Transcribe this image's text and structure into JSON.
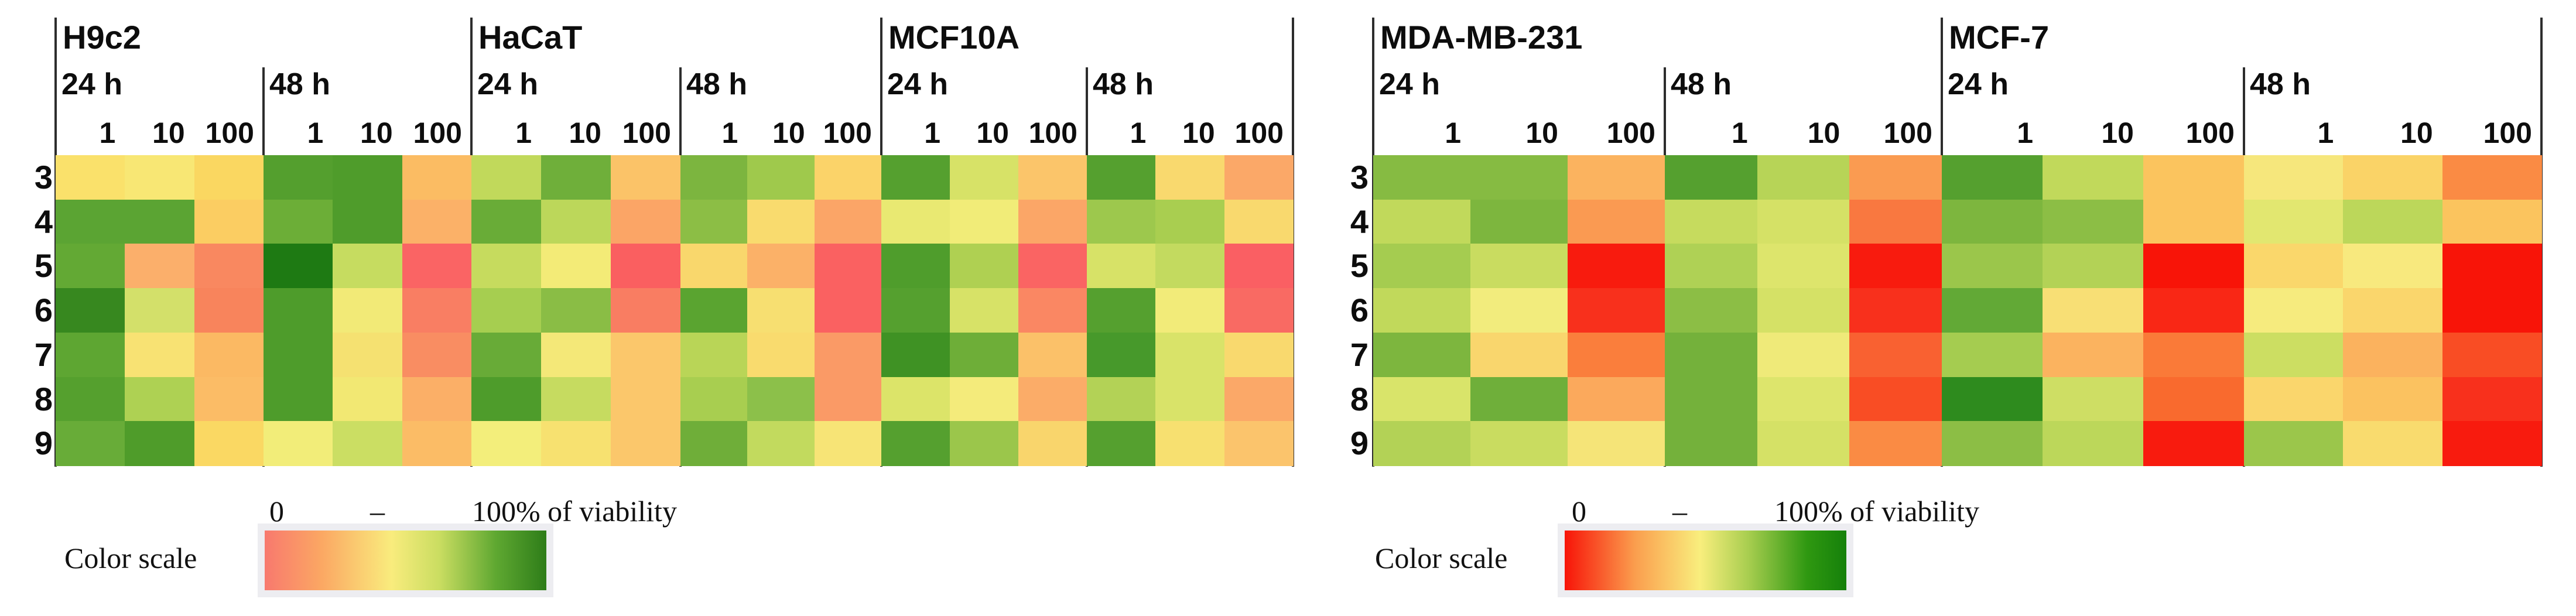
{
  "chart_data": {
    "type": "heatmap",
    "description": "Cell viability heatmaps for five cell lines at 24 h and 48 h, concentrations 1/10/100, compounds 3-9. Color encodes 0-100% viability (red=0, green=100).",
    "rows": [
      "3",
      "4",
      "5",
      "6",
      "7",
      "8",
      "9"
    ],
    "concentrations": [
      "1",
      "10",
      "100"
    ],
    "timepoint_labels": [
      "24 h",
      "48 h"
    ],
    "figures": [
      {
        "side": "left",
        "legend": {
          "label": "Color scale",
          "zero": "0",
          "dash": "–",
          "max": "100% of viability",
          "gradient": [
            "#f8796e",
            "#fba763 20%",
            "#f9ec7d 45%",
            "#cadd61 62%",
            "#5fa831 82%",
            "#2e7d19"
          ]
        },
        "cell_lines": [
          {
            "name": "H9c2",
            "timepoints": [
              {
                "label": "24 h",
                "cells": [
                  [
                    "#fae16b",
                    "#f8e774",
                    "#fad761"
                  ],
                  [
                    "#5ba433",
                    "#5ba433",
                    "#fbcd62"
                  ],
                  [
                    "#63a934",
                    "#fbaf6b",
                    "#f98860"
                  ],
                  [
                    "#37881f",
                    "#d3e06a",
                    "#f8845c"
                  ],
                  [
                    "#5ea632",
                    "#f8e273",
                    "#fbb963"
                  ],
                  [
                    "#55a02e",
                    "#aed153",
                    "#fbbc66"
                  ],
                  [
                    "#68ac38",
                    "#4f9c2a",
                    "#fad863"
                  ]
                ]
              },
              {
                "label": "48 h",
                "cells": [
                  [
                    "#549f2e",
                    "#4f9c2b",
                    "#fbbc63"
                  ],
                  [
                    "#6cae37",
                    "#4f9c2b",
                    "#fbb168"
                  ],
                  [
                    "#1e7a13",
                    "#c6dc60",
                    "#fa6464"
                  ],
                  [
                    "#4e9c2b",
                    "#f2ea77",
                    "#f97e63"
                  ],
                  [
                    "#4e9c2b",
                    "#f5e171",
                    "#f98d62"
                  ],
                  [
                    "#4e9c2b",
                    "#f2e873",
                    "#fbaf67"
                  ],
                  [
                    "#f2ed79",
                    "#cbde63",
                    "#fbbc66"
                  ]
                ]
              }
            ]
          },
          {
            "name": "HaCaT",
            "timepoints": [
              {
                "label": "24 h",
                "cells": [
                  [
                    "#c1d95b",
                    "#6faf3a",
                    "#fbc368"
                  ],
                  [
                    "#69ac37",
                    "#bcd75a",
                    "#fba566"
                  ],
                  [
                    "#c6db5e",
                    "#f3eb77",
                    "#fa5f60"
                  ],
                  [
                    "#a6ce50",
                    "#8abd45",
                    "#f97d62"
                  ],
                  [
                    "#68ab37",
                    "#f4e878",
                    "#fbc76b"
                  ],
                  [
                    "#4e9c2b",
                    "#c6db60",
                    "#fbc76b"
                  ],
                  [
                    "#f3ee7b",
                    "#f7e170",
                    "#fbc76b"
                  ]
                ]
              },
              {
                "label": "48 h",
                "cells": [
                  [
                    "#7cb53f",
                    "#9fc94c",
                    "#fbd369"
                  ],
                  [
                    "#8cbe45",
                    "#f9db6e",
                    "#fba567"
                  ],
                  [
                    "#f9d76c",
                    "#fbb168",
                    "#fa6161"
                  ],
                  [
                    "#5aa430",
                    "#f7df71",
                    "#fa6161"
                  ],
                  [
                    "#b9d557",
                    "#f9db6e",
                    "#fa9a66"
                  ],
                  [
                    "#a8ce50",
                    "#8cc04a",
                    "#fa9a66"
                  ],
                  [
                    "#6fae39",
                    "#c2da5e",
                    "#f7e476"
                  ]
                ]
              }
            ]
          },
          {
            "name": "MCF10A",
            "timepoints": [
              {
                "label": "24 h",
                "cells": [
                  [
                    "#55a02f",
                    "#d7e267",
                    "#fbc56a"
                  ],
                  [
                    "#e9e972",
                    "#f1ec78",
                    "#fba667"
                  ],
                  [
                    "#4f9d2c",
                    "#afd052",
                    "#fa6463"
                  ],
                  [
                    "#55a02f",
                    "#d7e267",
                    "#fa8763"
                  ],
                  [
                    "#3f9224",
                    "#6eae38",
                    "#fbc169"
                  ],
                  [
                    "#dce469",
                    "#f4eb7b",
                    "#fbac68"
                  ],
                  [
                    "#55a02f",
                    "#9bc64b",
                    "#f9d56c"
                  ]
                ]
              },
              {
                "label": "48 h",
                "cells": [
                  [
                    "#55a02f",
                    "#f9d96e",
                    "#fba868"
                  ],
                  [
                    "#9dc84d",
                    "#a9ce50",
                    "#f9d96e"
                  ],
                  [
                    "#d7e267",
                    "#c3da5f",
                    "#fa5f63"
                  ],
                  [
                    "#55a02f",
                    "#f2eb79",
                    "#f96a63"
                  ],
                  [
                    "#47992b",
                    "#d9e369",
                    "#f9d96e"
                  ],
                  [
                    "#b3d256",
                    "#d9e369",
                    "#fba868"
                  ],
                  [
                    "#55a02f",
                    "#f7e070",
                    "#fbc46c"
                  ]
                ]
              }
            ]
          }
        ]
      },
      {
        "side": "right",
        "legend": {
          "label": "Color scale",
          "zero": "0",
          "dash": "–",
          "max": "100% of viability",
          "gradient": [
            "#f81408",
            "#fa9e4e 25%",
            "#f9ee7d 48%",
            "#a9ce50 65%",
            "#2f9811 86%",
            "#15800a"
          ]
        },
        "cell_lines": [
          {
            "name": "MDA-MB-231",
            "timepoints": [
              {
                "label": "24 h",
                "cells": [
                  [
                    "#86bb42",
                    "#86bb42",
                    "#fbb35f"
                  ],
                  [
                    "#c1d95b",
                    "#7db63e",
                    "#fa9a52"
                  ],
                  [
                    "#a5cc50",
                    "#c9dc60",
                    "#f81b0e"
                  ],
                  [
                    "#c1d95b",
                    "#f2ec7d",
                    "#f8301c"
                  ],
                  [
                    "#7db63e",
                    "#f9d66d",
                    "#fa7e3c"
                  ],
                  [
                    "#d9e46a",
                    "#6faf3a",
                    "#fba95c"
                  ],
                  [
                    "#b3d256",
                    "#c9dc60",
                    "#f5e478"
                  ]
                ]
              },
              {
                "label": "48 h",
                "cells": [
                  [
                    "#55a02f",
                    "#b7d457",
                    "#fa9b51"
                  ],
                  [
                    "#c6db5e",
                    "#d5e166",
                    "#f97840"
                  ],
                  [
                    "#afd155",
                    "#dde56c",
                    "#f81b0e"
                  ],
                  [
                    "#8cbe45",
                    "#d5e166",
                    "#f8301c"
                  ],
                  [
                    "#74b13b",
                    "#efea79",
                    "#f96131"
                  ],
                  [
                    "#74b13b",
                    "#dde56c",
                    "#f94d24"
                  ],
                  [
                    "#74b13b",
                    "#d5e166",
                    "#fa8b44"
                  ]
                ]
              }
            ]
          },
          {
            "name": "MCF-7",
            "timepoints": [
              {
                "label": "24 h",
                "cells": [
                  [
                    "#55a02f",
                    "#c1d95b",
                    "#fbc45e"
                  ],
                  [
                    "#7db63e",
                    "#8cbe45",
                    "#fbc45e"
                  ],
                  [
                    "#9bc64b",
                    "#b3d256",
                    "#f81408"
                  ],
                  [
                    "#62a936",
                    "#f8df75",
                    "#f92715"
                  ],
                  [
                    "#a5cc50",
                    "#fbb35f",
                    "#fa7a38"
                  ],
                  [
                    "#2e8b1e",
                    "#cede64",
                    "#f96a2e"
                  ],
                  [
                    "#8cbe45",
                    "#bcd75a",
                    "#f81b0e"
                  ]
                ]
              },
              {
                "label": "48 h",
                "cells": [
                  [
                    "#f6e77c",
                    "#fad367",
                    "#fa8b44"
                  ],
                  [
                    "#e2e770",
                    "#bcd75a",
                    "#fbc45e"
                  ],
                  [
                    "#fad76b",
                    "#f8e97e",
                    "#f81408"
                  ],
                  [
                    "#f6eb7e",
                    "#fad66c",
                    "#f81408"
                  ],
                  [
                    "#ccde62",
                    "#fbb25e",
                    "#f94d24"
                  ],
                  [
                    "#fad66c",
                    "#fbc260",
                    "#f8301c"
                  ],
                  [
                    "#9bc64b",
                    "#f9db6e",
                    "#f81b0e"
                  ]
                ]
              }
            ]
          }
        ]
      }
    ]
  }
}
